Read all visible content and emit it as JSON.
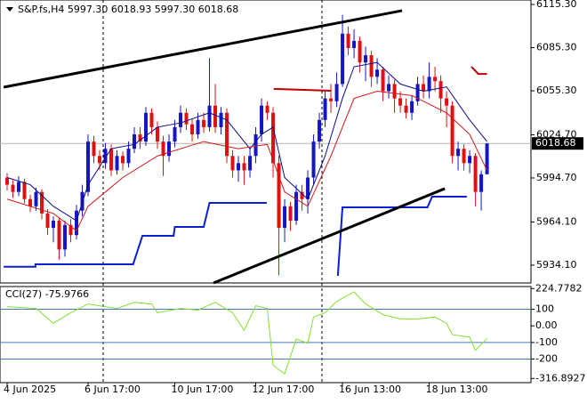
{
  "chart_data": {
    "type": "candlestick",
    "title": "S&P.fs,H4  5997.30 6018.93 5997.30 6018.68",
    "up_color": "#1414c8",
    "down_color": "#e01010",
    "xlim": [
      -1.23,
      90.6
    ],
    "xticks": [
      {
        "value": 0,
        "label": "4 Jun 2025"
      },
      {
        "value": 14,
        "label": "6 Jun 17:00"
      },
      {
        "value": 29,
        "label": "10 Jun 17:00"
      },
      {
        "value": 43,
        "label": "12 Jun 17:00"
      },
      {
        "value": 58,
        "label": "16 Jun 13:00"
      },
      {
        "value": 73,
        "label": "18 Jun 13:00"
      }
    ],
    "ylim": [
      5921.7,
      6118.4
    ],
    "yticks": [
      {
        "value": 6115.3,
        "label": "6115.30"
      },
      {
        "value": 6085.3,
        "label": "6085.30"
      },
      {
        "value": 6055.3,
        "label": "6055.30"
      },
      {
        "value": 6024.7,
        "label": "6024.70"
      },
      {
        "value": 5994.7,
        "label": "5994.70"
      },
      {
        "value": 5964.1,
        "label": "5964.10"
      },
      {
        "value": 5934.1,
        "label": "5934.10"
      }
    ],
    "last_price": 6018.68,
    "open": [
      5995,
      5990,
      5985,
      5992,
      5980,
      5975,
      5985,
      5970,
      5960,
      5965,
      5945,
      5962,
      5955,
      5972,
      5985,
      6020,
      6010,
      6005,
      6015,
      6000,
      6010,
      6005,
      6015,
      6025,
      6020,
      6040,
      6030,
      6020,
      6010,
      6020,
      6030,
      6040,
      6032,
      6025,
      6035,
      6030,
      6045,
      6030,
      6040,
      6010,
      6000,
      6005,
      6000,
      6010,
      6025,
      6045,
      6040,
      6005,
      5960,
      5975,
      5965,
      5985,
      5980,
      5995,
      6020,
      6035,
      6050,
      6048,
      6060,
      6095,
      6085,
      6090,
      6075,
      6080,
      6065,
      6070,
      6055,
      6060,
      6050,
      6045,
      6040,
      6048,
      6060,
      6055,
      6065,
      6062,
      6050,
      6045,
      6010,
      6015,
      6005,
      6010,
      5985,
      5997.3
    ],
    "high": [
      5998,
      5993,
      5996,
      5994,
      5983,
      5988,
      5987,
      5973,
      5968,
      5967,
      5965,
      5966,
      5976,
      5990,
      6025,
      6024,
      6014,
      6019,
      6018,
      6014,
      6013,
      6020,
      6030,
      6030,
      6044,
      6043,
      6034,
      6024,
      6025,
      6035,
      6045,
      6043,
      6036,
      6040,
      6040,
      6078,
      6060,
      6044,
      6043,
      6014,
      6010,
      6010,
      6015,
      6030,
      6050,
      6048,
      6044,
      6010,
      5980,
      5978,
      5990,
      5990,
      6000,
      6025,
      6040,
      6055,
      6060,
      6068,
      6108,
      6100,
      6098,
      6093,
      6086,
      6083,
      6078,
      6072,
      6066,
      6063,
      6055,
      6050,
      6052,
      6065,
      6066,
      6075,
      6072,
      6066,
      6055,
      6048,
      6020,
      6018,
      6014,
      6012,
      6000,
      6018.93
    ],
    "low": [
      5986,
      5981,
      5982,
      5977,
      5971,
      5972,
      5966,
      5955,
      5950,
      5938,
      5940,
      5950,
      5952,
      5968,
      5982,
      6005,
      6000,
      6001,
      5996,
      5997,
      6000,
      6002,
      6012,
      6015,
      6017,
      6025,
      6015,
      5996,
      6006,
      6016,
      6026,
      6028,
      6020,
      6022,
      6026,
      6027,
      6026,
      6025,
      6005,
      5995,
      5992,
      5990,
      5995,
      6005,
      6020,
      6035,
      5995,
      5927,
      5950,
      5958,
      5962,
      5972,
      5970,
      5990,
      6015,
      6030,
      6040,
      6044,
      6058,
      6080,
      6078,
      6068,
      6062,
      6058,
      6060,
      6048,
      6050,
      6040,
      6040,
      6036,
      6035,
      6045,
      6050,
      6050,
      6055,
      6040,
      6030,
      6005,
      6000,
      6000,
      5998,
      5975,
      5972,
      5997.3
    ],
    "close": [
      5990,
      5985,
      5992,
      5980,
      5975,
      5985,
      5970,
      5960,
      5965,
      5945,
      5962,
      5955,
      5972,
      5985,
      6020,
      6010,
      6005,
      6015,
      6000,
      6010,
      6005,
      6015,
      6025,
      6020,
      6040,
      6030,
      6020,
      6010,
      6020,
      6030,
      6040,
      6032,
      6025,
      6035,
      6030,
      6045,
      6030,
      6040,
      6010,
      6000,
      6005,
      6000,
      6010,
      6025,
      6045,
      6040,
      6005,
      5960,
      5975,
      5965,
      5985,
      5980,
      5995,
      6020,
      6035,
      6050,
      6048,
      6060,
      6095,
      6085,
      6090,
      6075,
      6080,
      6065,
      6070,
      6055,
      6060,
      6050,
      6045,
      6040,
      6048,
      6060,
      6055,
      6065,
      6062,
      6050,
      6045,
      6010,
      6015,
      6005,
      6010,
      5985,
      5997.3,
      6018.68
    ],
    "overlays": [
      {
        "type": "line",
        "kind": "average",
        "color": "#0a0a8c",
        "x": [
          0,
          4,
          8,
          12,
          14,
          18,
          22,
          26,
          30,
          35,
          38,
          42,
          44,
          46,
          48,
          52,
          55,
          58,
          60,
          64,
          68,
          72,
          76,
          80,
          83
        ],
        "values": [
          5995,
          5990,
          5975,
          5965,
          5990,
          6015,
          6018,
          6030,
          6033,
          6040,
          6035,
          6015,
          6025,
          6030,
          5995,
          5980,
          6010,
          6050,
          6072,
          6075,
          6060,
          6055,
          6058,
          6035,
          6020
        ]
      },
      {
        "type": "line",
        "kind": "average",
        "color": "#d01818",
        "x": [
          0,
          8,
          12,
          14,
          20,
          26,
          34,
          40,
          45,
          48,
          52,
          56,
          60,
          64,
          70,
          76,
          80,
          83
        ],
        "values": [
          5980,
          5970,
          5958,
          5975,
          5995,
          6010,
          6020,
          6015,
          6018,
          5985,
          5975,
          6010,
          6050,
          6055,
          6052,
          6040,
          6025,
          6000
        ]
      },
      {
        "type": "line",
        "kind": "channel",
        "color": "#0a1ed2",
        "x": [
          -0.6,
          4.9,
          4.9,
          21.8,
          23.4,
          28.8,
          29,
          34,
          35,
          44.9,
          null,
          57.2,
          58,
          60.3,
          72.7,
          73.5,
          79.5
        ],
        "values": [
          5933,
          5933,
          5934.7,
          5934.7,
          5954.5,
          5954.5,
          5960.7,
          5960.7,
          5977.4,
          5977.4,
          null,
          5926.7,
          5974.3,
          5974.3,
          5974.3,
          5981.7,
          5981.7
        ]
      },
      {
        "type": "line",
        "kind": "trendline",
        "color": "#000000",
        "x": [
          -0.6,
          68.3
        ],
        "values": [
          6057.8,
          6111
        ]
      },
      {
        "type": "line",
        "kind": "trendline",
        "color": "#000000",
        "x": [
          35.7,
          75.7
        ],
        "values": [
          5921.7,
          5987.3
        ]
      },
      {
        "type": "line",
        "kind": "marker",
        "color": "#c00000",
        "x": [
          46.1,
          56
        ],
        "values": [
          6056.6,
          6055.3
        ]
      },
      {
        "type": "line",
        "kind": "marker",
        "color": "#c00000",
        "x": [
          80.3,
          81.5,
          83
        ],
        "values": [
          6072,
          6067,
          6067
        ]
      }
    ],
    "indicator": {
      "type": "line",
      "title": "CCI(27) -75.9766",
      "color": "#80e030",
      "x": [
        0,
        5,
        8,
        11,
        14,
        19,
        22,
        25,
        26,
        30,
        33,
        36,
        39,
        41,
        43,
        45,
        46,
        48,
        50,
        52,
        53,
        55,
        57,
        60,
        62,
        65,
        68,
        71,
        74,
        76,
        77,
        80,
        81,
        83
      ],
      "values": [
        116,
        105,
        16,
        79,
        132,
        105,
        142,
        132,
        79,
        105,
        95,
        142,
        79,
        -26,
        121,
        105,
        -237,
        -289,
        -79,
        -105,
        53,
        79,
        147,
        205,
        132,
        68,
        42,
        42,
        53,
        16,
        -53,
        -68,
        -147,
        -75.9766
      ],
      "ylim": [
        -342,
        237
      ],
      "yticks": [
        224.7782,
        100,
        {
          "value": 0,
          "label": "0.00"
        },
        -100,
        -200,
        -316.8927
      ],
      "levels": [
        100,
        -100,
        -200
      ],
      "level_color": "#4a78b4"
    }
  }
}
